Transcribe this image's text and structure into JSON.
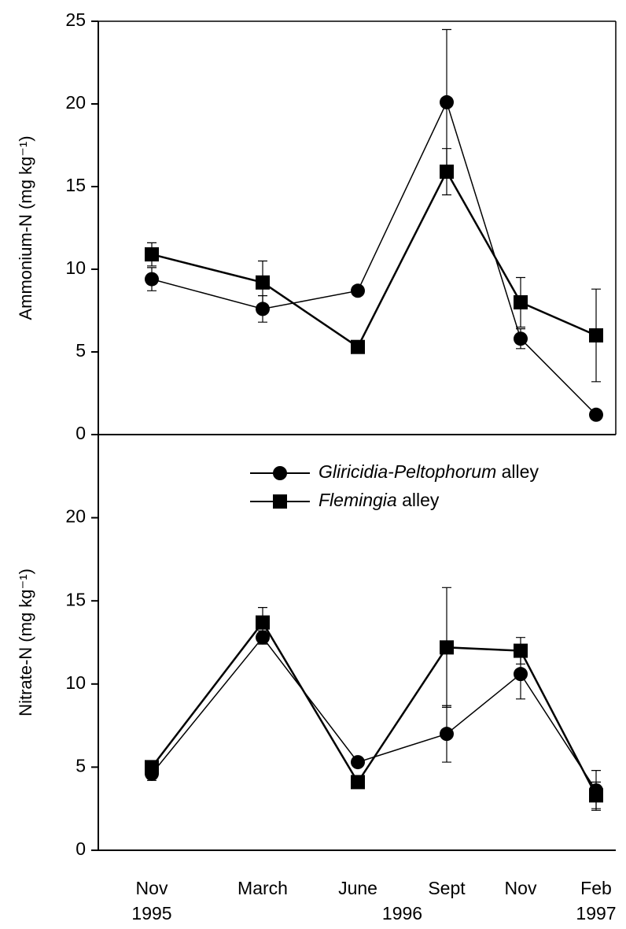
{
  "chart_data": [
    {
      "type": "line",
      "y_label": "Ammonium-N  (mg kg⁻¹)",
      "ylim": [
        0,
        25
      ],
      "yticks": [
        0,
        5,
        10,
        15,
        20,
        25
      ],
      "series": [
        {
          "marker": "circle",
          "color": "#000000",
          "values": [
            9.4,
            7.6,
            8.7,
            20.1,
            5.8,
            1.2
          ],
          "errors": [
            0.7,
            0.8,
            null,
            4.4,
            0.6,
            null
          ]
        },
        {
          "marker": "square",
          "color": "#000000",
          "values": [
            10.9,
            9.2,
            5.3,
            15.9,
            8.0,
            6.0
          ],
          "errors": [
            0.7,
            1.3,
            null,
            1.4,
            1.5,
            2.8
          ]
        }
      ]
    },
    {
      "type": "line",
      "y_label": "Nitrate-N  (mg kg⁻¹)",
      "categories": [
        "Nov",
        "March",
        "June",
        "Sept",
        "Nov",
        "Feb"
      ],
      "year_labels": [
        "1995",
        "1996",
        "1997"
      ],
      "ylim": [
        0,
        25
      ],
      "yticks": [
        0,
        5,
        10,
        15,
        20
      ],
      "legend": true,
      "series": [
        {
          "name": "Gliricidia-Peltophorum alley",
          "marker": "circle",
          "color": "#000000",
          "values": [
            4.6,
            12.8,
            5.3,
            7.0,
            10.6,
            3.6
          ],
          "errors": [
            0.4,
            0.4,
            0.2,
            1.7,
            1.5,
            1.2
          ]
        },
        {
          "name": "Flemingia alley",
          "marker": "square",
          "color": "#000000",
          "values": [
            5.0,
            13.7,
            4.1,
            12.2,
            12.0,
            3.3
          ],
          "errors": [
            0.2,
            0.9,
            null,
            3.6,
            0.8,
            0.8
          ]
        }
      ]
    }
  ]
}
